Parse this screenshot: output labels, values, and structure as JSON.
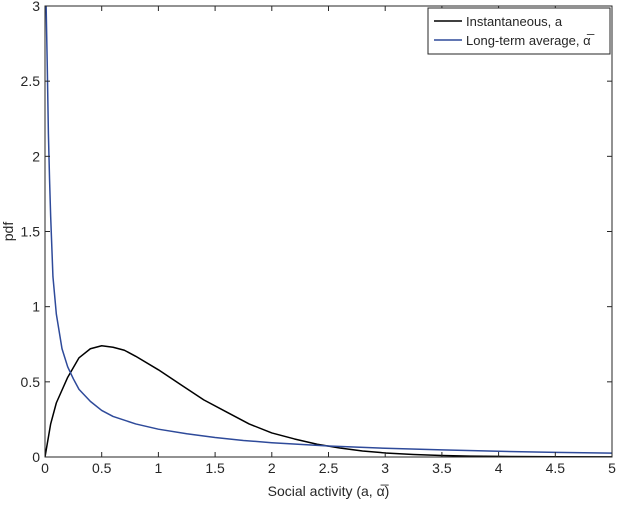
{
  "chart_data": {
    "type": "line",
    "title": "",
    "xlabel": "Social activity (a, α̅)",
    "ylabel": "pdf",
    "xlim": [
      0,
      5
    ],
    "ylim": [
      0,
      3
    ],
    "xticks": [
      0,
      0.5,
      1,
      1.5,
      2,
      2.5,
      3,
      3.5,
      4,
      4.5,
      5
    ],
    "xtick_labels": [
      "0",
      "0.5",
      "1",
      "1.5",
      "2",
      "2.5",
      "3",
      "3.5",
      "4",
      "4.5",
      "5"
    ],
    "yticks": [
      0,
      0.5,
      1,
      1.5,
      2,
      2.5,
      3
    ],
    "ytick_labels": [
      "0",
      "0.5",
      "1",
      "1.5",
      "2",
      "2.5",
      "3"
    ],
    "grid": false,
    "legend_position": "top-right",
    "series": [
      {
        "name": "Instantaneous, a",
        "color": "#000000",
        "x": [
          0,
          0.05,
          0.1,
          0.2,
          0.3,
          0.4,
          0.5,
          0.6,
          0.7,
          0.8,
          1.0,
          1.2,
          1.4,
          1.6,
          1.8,
          2.0,
          2.2,
          2.4,
          2.6,
          2.8,
          3.0,
          3.25,
          3.5,
          3.75,
          4.0,
          4.5,
          5.0
        ],
        "values": [
          0.0,
          0.22,
          0.36,
          0.53,
          0.66,
          0.72,
          0.74,
          0.73,
          0.71,
          0.67,
          0.58,
          0.48,
          0.38,
          0.3,
          0.22,
          0.16,
          0.12,
          0.085,
          0.06,
          0.04,
          0.027,
          0.017,
          0.01,
          0.006,
          0.004,
          0.0015,
          0.0005
        ]
      },
      {
        "name": "Long-term average, α̅",
        "color": "#2e4a9a",
        "x": [
          0.01,
          0.02,
          0.03,
          0.04,
          0.05,
          0.07,
          0.1,
          0.15,
          0.2,
          0.25,
          0.3,
          0.4,
          0.5,
          0.6,
          0.8,
          1.0,
          1.25,
          1.5,
          1.75,
          2.0,
          2.5,
          3.0,
          3.5,
          4.0,
          4.5,
          5.0
        ],
        "values": [
          3.0,
          2.6,
          2.15,
          1.85,
          1.6,
          1.2,
          0.95,
          0.72,
          0.6,
          0.52,
          0.45,
          0.37,
          0.31,
          0.27,
          0.22,
          0.185,
          0.155,
          0.13,
          0.11,
          0.095,
          0.073,
          0.058,
          0.047,
          0.038,
          0.031,
          0.026
        ]
      }
    ]
  }
}
